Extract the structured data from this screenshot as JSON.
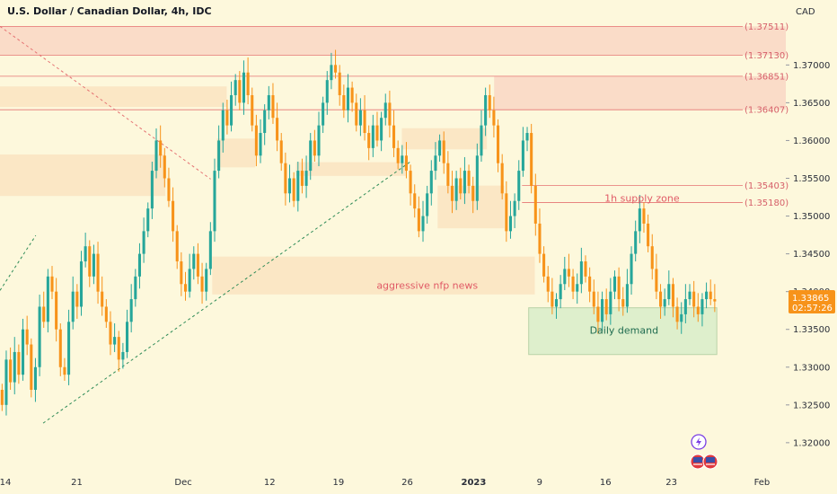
{
  "chart_data": {
    "type": "candlestick",
    "title": "U.S. Dollar / Canadian Dollar, 4h, IDC",
    "currency": "CAD",
    "ylim": [
      1.3163,
      1.3786
    ],
    "y_ticks": [
      "1.37000",
      "1.36500",
      "1.36000",
      "1.35500",
      "1.35000",
      "1.34500",
      "1.34000",
      "1.33500",
      "1.33000",
      "1.32500",
      "1.32000"
    ],
    "y_tick_values": [
      1.37,
      1.365,
      1.36,
      1.355,
      1.35,
      1.345,
      1.34,
      1.335,
      1.33,
      1.325,
      1.32
    ],
    "x_ticks": [
      {
        "label": "14",
        "pos": 0.0
      },
      {
        "label": "21",
        "pos": 0.0909
      },
      {
        "label": "Dec",
        "pos": 0.2264
      },
      {
        "label": "12",
        "pos": 0.3363
      },
      {
        "label": "19",
        "pos": 0.4238
      },
      {
        "label": "26",
        "pos": 0.5114
      },
      {
        "label": "2023",
        "pos": 0.5959,
        "bold": true
      },
      {
        "label": "9",
        "pos": 0.6798
      },
      {
        "label": "16",
        "pos": 0.7637
      },
      {
        "label": "23",
        "pos": 0.8476
      },
      {
        "label": "Feb",
        "pos": 0.9628
      }
    ],
    "levels": [
      {
        "value": 1.37511,
        "label": "(1.37511)"
      },
      {
        "value": 1.3713,
        "label": "(1.37130)"
      },
      {
        "value": 1.36851,
        "label": "(1.36851)"
      },
      {
        "value": 1.36407,
        "label": "(1.36407)"
      },
      {
        "value": 1.35403,
        "label": "(1.35403)"
      },
      {
        "value": 1.3518,
        "label": "(1.35180)"
      }
    ],
    "last_price": "1.33865",
    "countdown": "02:57:26",
    "colors": {
      "up": "#26a69a",
      "down": "#f7931a",
      "zone": "#f7c89a",
      "zone_top": "#f4a9a2",
      "demand": "#d6ecc8",
      "level": "#e57373",
      "trend": "#2e8b57",
      "price_tag": "#f7931a"
    },
    "zones": [
      {
        "name": "top-supply",
        "y1": 1.37511,
        "y2": 1.3713,
        "x1": 0.0,
        "x2": 1.0
      },
      {
        "name": "upper-supply",
        "y1": 1.36851,
        "y2": 1.36407,
        "x1": 0.6288,
        "x2": 1.0
      },
      {
        "name": "left-zone-1",
        "y1": 1.36716,
        "y2": 1.36444,
        "x1": 0.0,
        "x2": 0.2885
      },
      {
        "name": "left-zone-2",
        "y1": 1.35815,
        "y2": 1.35266,
        "x1": 0.0,
        "x2": 0.2104
      },
      {
        "name": "dec-zone",
        "y1": 1.36026,
        "y2": 1.35645,
        "x1": 0.2759,
        "x2": 0.3248
      },
      {
        "name": "mid-zone",
        "y1": 1.35713,
        "y2": 1.35531,
        "x1": 0.3767,
        "x2": 0.5172
      },
      {
        "name": "dec26-zone",
        "y1": 1.36163,
        "y2": 1.35883,
        "x1": 0.5114,
        "x2": 0.6196
      },
      {
        "name": "dec30-zone",
        "y1": 1.35403,
        "y2": 1.34838,
        "x1": 0.5569,
        "x2": 0.6418
      },
      {
        "name": "nfp-zone",
        "y1": 1.34464,
        "y2": 1.33963,
        "x1": 0.2701,
        "x2": 0.6806
      },
      {
        "name": "daily-demand",
        "y1": 1.33786,
        "y2": 1.33167,
        "x1": 0.6728,
        "x2": 0.9122
      }
    ],
    "annotations": [
      {
        "text": "1h supply zone",
        "value": 1.35237,
        "pos": 0.817,
        "color": "#e05a66"
      },
      {
        "text": "aggressive nfp news",
        "value": 1.34088,
        "pos": 0.5437,
        "color": "#e05a66"
      },
      {
        "text": "Daily demand",
        "value": 1.33491,
        "pos": 0.7941,
        "color": "#1f6b4f"
      }
    ],
    "trendlines": [
      {
        "name": "uptrend-dotted",
        "color": "#2e8b57",
        "points": [
          [
            0.0549,
            1.32259
          ],
          [
            0.5219,
            1.35717
          ]
        ]
      },
      {
        "name": "downtrend-dotted",
        "color": "#e57373",
        "points": [
          [
            0.0,
            1.37511
          ],
          [
            0.2681,
            1.35489
          ]
        ]
      },
      {
        "name": "uptrend-left",
        "color": "#2e8b57",
        "points": [
          [
            0.0,
            1.34015
          ],
          [
            0.0455,
            1.34743
          ]
        ]
      }
    ],
    "series_close": [
      1.325,
      1.331,
      1.328,
      1.332,
      1.329,
      1.335,
      1.333,
      1.327,
      1.33,
      1.338,
      1.336,
      1.342,
      1.34,
      1.335,
      1.33,
      1.329,
      1.336,
      1.34,
      1.338,
      1.344,
      1.346,
      1.342,
      1.345,
      1.34,
      1.338,
      1.336,
      1.333,
      1.334,
      1.331,
      1.332,
      1.336,
      1.339,
      1.342,
      1.345,
      1.348,
      1.351,
      1.356,
      1.36,
      1.358,
      1.355,
      1.352,
      1.348,
      1.344,
      1.341,
      1.34,
      1.343,
      1.345,
      1.342,
      1.34,
      1.343,
      1.348,
      1.356,
      1.36,
      1.364,
      1.362,
      1.366,
      1.368,
      1.365,
      1.369,
      1.366,
      1.362,
      1.358,
      1.361,
      1.364,
      1.366,
      1.363,
      1.36,
      1.357,
      1.353,
      1.355,
      1.352,
      1.356,
      1.354,
      1.356,
      1.36,
      1.358,
      1.362,
      1.365,
      1.368,
      1.37,
      1.369,
      1.366,
      1.364,
      1.367,
      1.365,
      1.362,
      1.364,
      1.361,
      1.359,
      1.362,
      1.36,
      1.363,
      1.365,
      1.362,
      1.359,
      1.357,
      1.358,
      1.356,
      1.353,
      1.351,
      1.348,
      1.35,
      1.353,
      1.356,
      1.358,
      1.36,
      1.357,
      1.354,
      1.352,
      1.355,
      1.353,
      1.356,
      1.354,
      1.352,
      1.358,
      1.362,
      1.366,
      1.364,
      1.362,
      1.357,
      1.353,
      1.348,
      1.35,
      1.352,
      1.356,
      1.36,
      1.361,
      1.354,
      1.349,
      1.345,
      1.342,
      1.34,
      1.338,
      1.339,
      1.341,
      1.343,
      1.342,
      1.34,
      1.341,
      1.344,
      1.342,
      1.34,
      1.338,
      1.336,
      1.339,
      1.337,
      1.34,
      1.342,
      1.339,
      1.338,
      1.341,
      1.345,
      1.348,
      1.351,
      1.349,
      1.346,
      1.343,
      1.34,
      1.338,
      1.339,
      1.341,
      1.338,
      1.336,
      1.337,
      1.339,
      1.34,
      1.338,
      1.337,
      1.339,
      1.34,
      1.339,
      1.3387
    ]
  },
  "icons": {
    "alert": "lightning-icon",
    "events": "us-flag-icon"
  }
}
